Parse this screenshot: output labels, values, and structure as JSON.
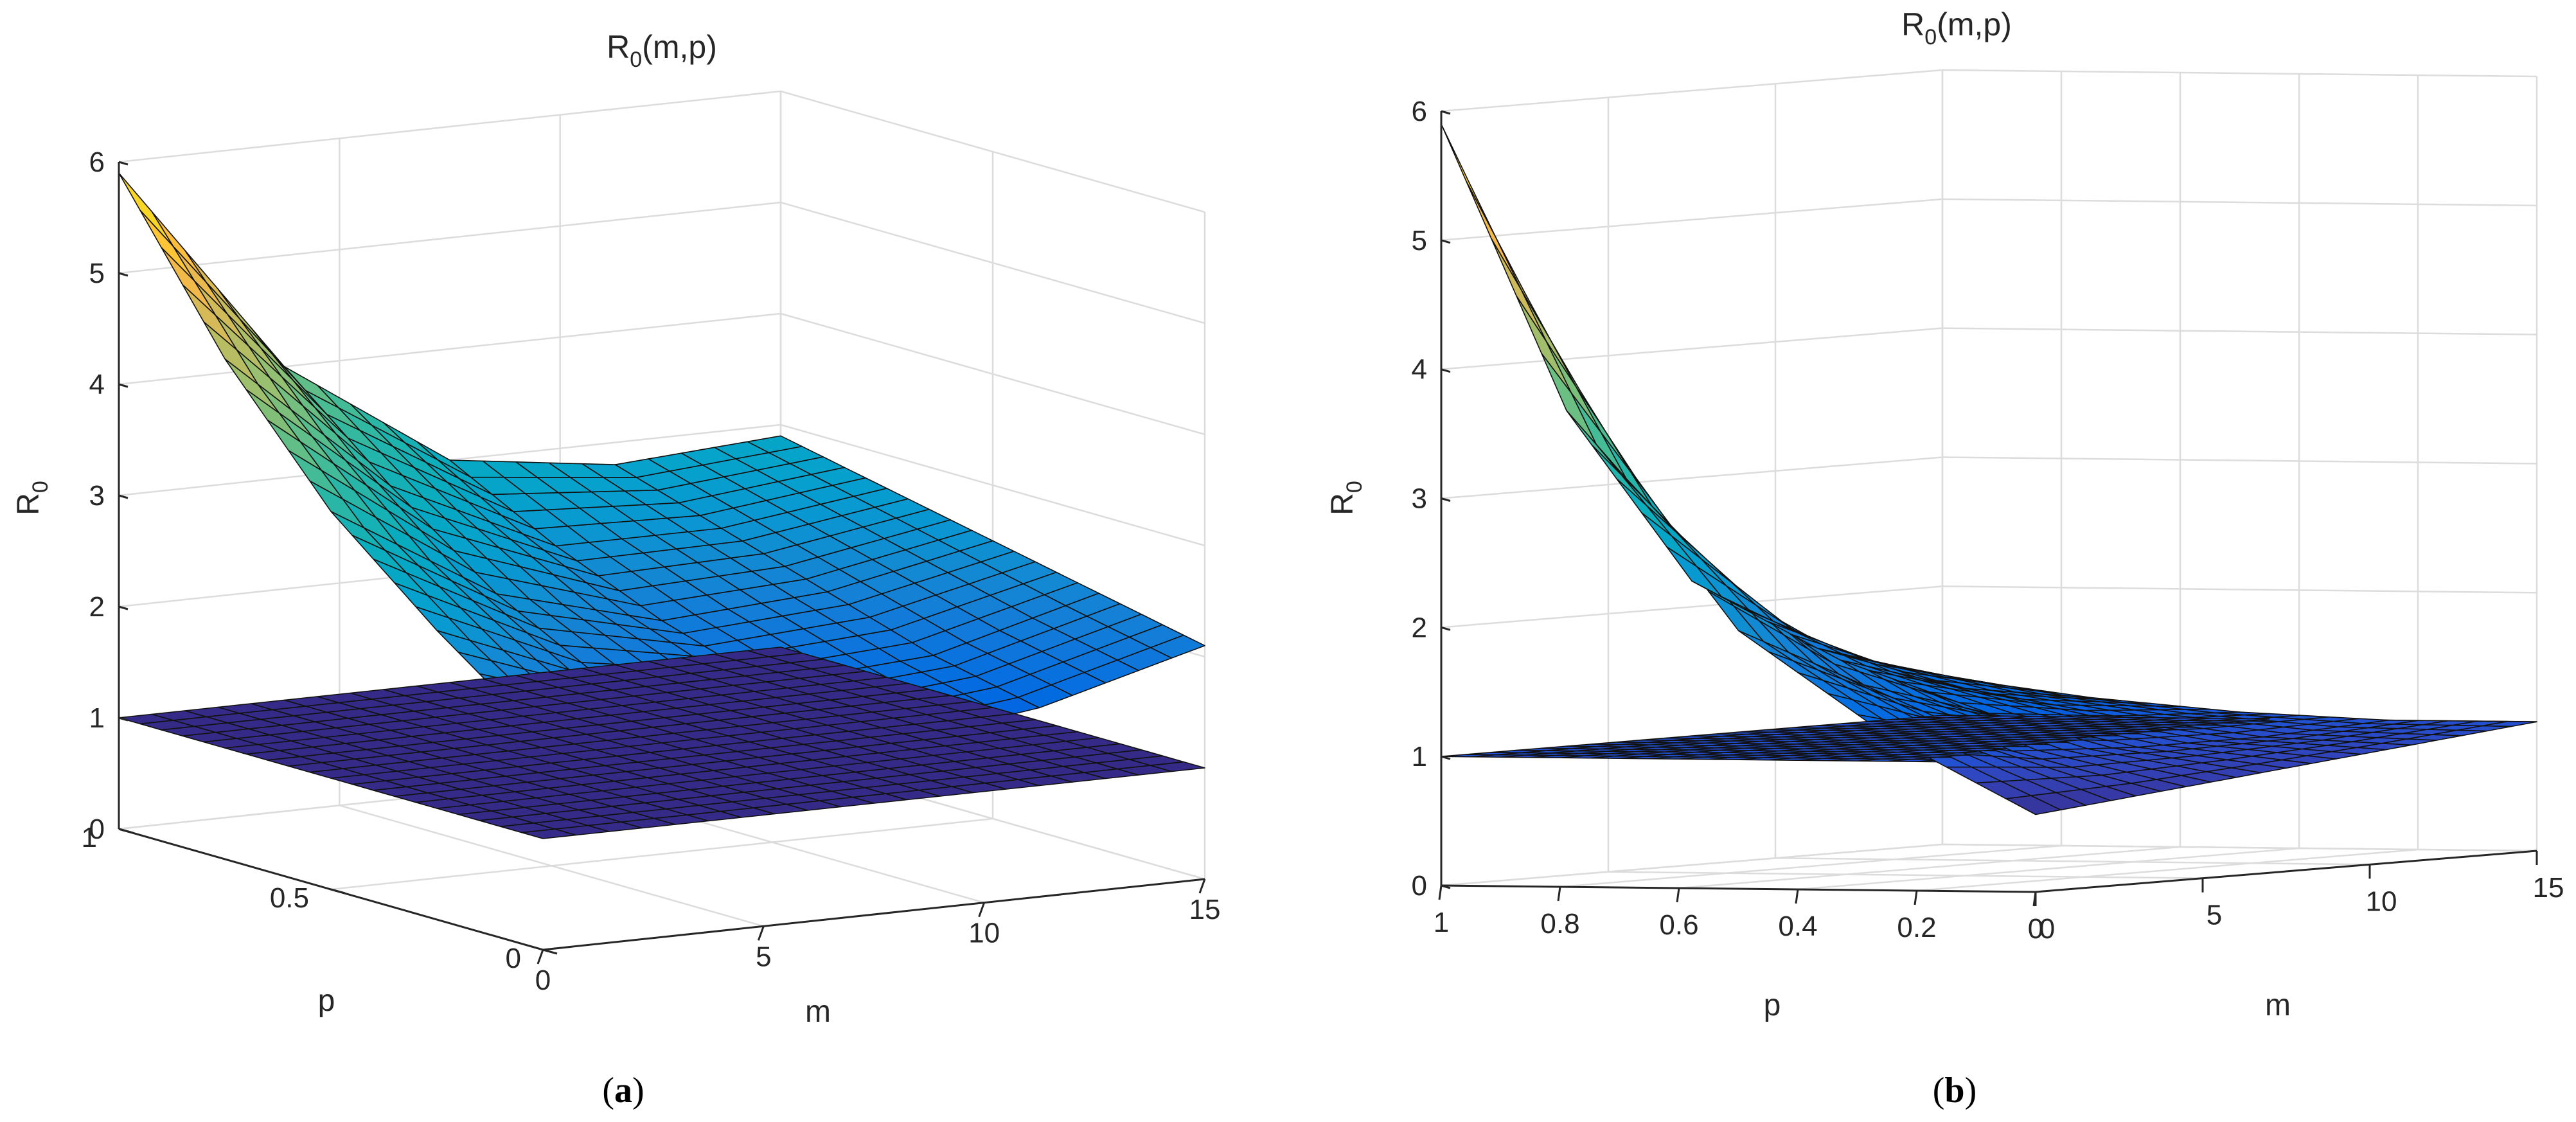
{
  "panels": [
    {
      "caption_letter": "a",
      "title_main": "R",
      "title_sub": "0",
      "title_rest": "(m,p)",
      "zlabel_main": "R",
      "zlabel_sub": "0",
      "xlabel": "m",
      "ylabel": "p",
      "xticks": [
        "0",
        "5",
        "10",
        "15"
      ],
      "yticks": [
        "0",
        "0.5",
        "1"
      ],
      "zticks": [
        "0",
        "1",
        "2",
        "3",
        "4",
        "5",
        "6"
      ]
    },
    {
      "caption_letter": "b",
      "title_main": "R",
      "title_sub": "0",
      "title_rest": "(m,p)",
      "zlabel_main": "R",
      "zlabel_sub": "0",
      "xlabel": "m",
      "ylabel": "p",
      "xticks": [
        "0",
        "5",
        "10",
        "15"
      ],
      "yticks": [
        "0",
        "0.2",
        "0.4",
        "0.6",
        "0.8",
        "1"
      ],
      "zticks": [
        "0",
        "1",
        "2",
        "3",
        "4",
        "5",
        "6"
      ]
    }
  ],
  "chart_data": [
    {
      "type": "surface",
      "title": "R0(m,p)",
      "xlabel": "m",
      "ylabel": "p",
      "zlabel": "R0",
      "xlim": [
        0,
        15
      ],
      "ylim": [
        0,
        1
      ],
      "zlim": [
        0,
        6
      ],
      "grid": true,
      "colormap": "parula",
      "series": [
        {
          "name": "",
          "description_m_range": [
            0,
            15
          ],
          "p_range": [
            0,
            1
          ],
          "z_at_m0_p1": 5.9,
          "z_at_m0_p0": 1.9,
          "z_at_m15_p0": 2.1,
          "z_at_m15_p1": 2.9,
          "z_grid_m": [
            0,
            3.75,
            7.5,
            11.25,
            15
          ],
          "z_grid_p": [
            0,
            0.25,
            0.5,
            0.75,
            1
          ],
          "z_values": [
            [
              1.9,
              1.6,
              1.5,
              1.7,
              2.1
            ],
            [
              2.6,
              2.0,
              1.8,
              1.9,
              2.3
            ],
            [
              3.4,
              2.5,
              2.1,
              2.2,
              2.5
            ],
            [
              4.5,
              3.2,
              2.5,
              2.5,
              2.7
            ],
            [
              5.9,
              4.0,
              3.0,
              2.8,
              2.9
            ]
          ]
        },
        {
          "name": "",
          "constant_z": 1
        }
      ]
    },
    {
      "type": "surface",
      "title": "R0(m,p)",
      "xlabel": "m",
      "ylabel": "p",
      "zlabel": "R0",
      "xlim": [
        0,
        15
      ],
      "ylim": [
        0,
        1
      ],
      "zlim": [
        0,
        6
      ],
      "grid": true,
      "colormap": "parula",
      "series": [
        {
          "name": "",
          "z_grid_m": [
            0,
            3.75,
            7.5,
            11.25,
            15
          ],
          "z_grid_p": [
            0,
            0.25,
            0.5,
            0.75,
            1
          ],
          "z_values": [
            [
              0.6,
              0.7,
              0.8,
              0.9,
              1.0
            ],
            [
              1.2,
              1.0,
              0.95,
              0.95,
              1.0
            ],
            [
              2.0,
              1.5,
              1.2,
              1.1,
              1.05
            ],
            [
              3.5,
              2.3,
              1.6,
              1.3,
              1.15
            ],
            [
              5.9,
              3.6,
              2.2,
              1.6,
              1.3
            ]
          ]
        },
        {
          "name": "",
          "constant_z": 1
        }
      ]
    }
  ]
}
